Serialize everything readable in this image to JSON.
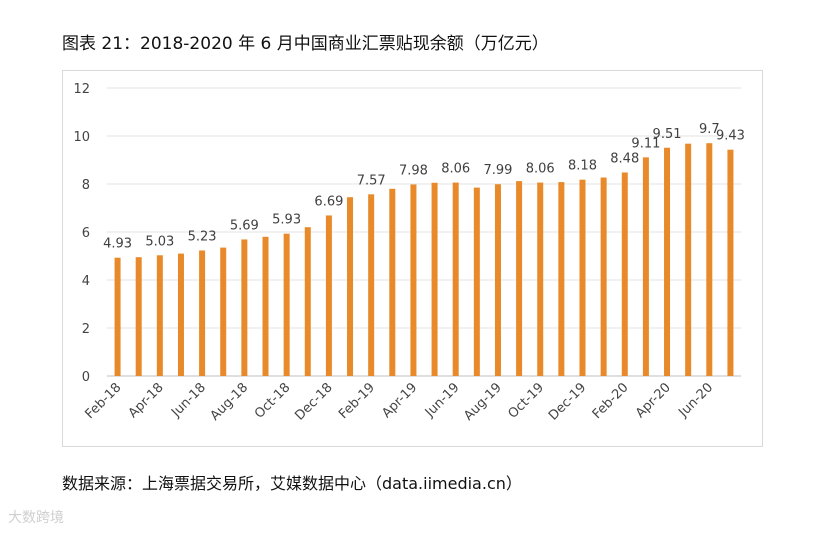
{
  "title": "图表 21：2018-2020 年 6 月中国商业汇票贴现余额（万亿元）",
  "source": "数据来源：上海票据交易所，艾媒数据中心（data.iimedia.cn）",
  "watermark": "大数跨境",
  "chart_data": {
    "type": "bar",
    "bar_color": "#E8892A",
    "ylim": [
      0,
      12
    ],
    "yticks": [
      0,
      2,
      4,
      6,
      8,
      10,
      12
    ],
    "grid": true,
    "categories": [
      "Feb-18",
      "Mar-18",
      "Apr-18",
      "May-18",
      "Jun-18",
      "Jul-18",
      "Aug-18",
      "Sep-18",
      "Oct-18",
      "Nov-18",
      "Dec-18",
      "Jan-19",
      "Feb-19",
      "Mar-19",
      "Apr-19",
      "May-19",
      "Jun-19",
      "Jul-19",
      "Aug-19",
      "Sep-19",
      "Oct-19",
      "Nov-19",
      "Dec-19",
      "Jan-20",
      "Feb-20",
      "Mar-20",
      "Apr-20",
      "May-20",
      "Jun-20",
      "Jul-20"
    ],
    "x_tick_labels": [
      "Feb-18",
      "Apr-18",
      "Jun-18",
      "Aug-18",
      "Oct-18",
      "Dec-18",
      "Feb-19",
      "Apr-19",
      "Jun-19",
      "Aug-19",
      "Oct-19",
      "Dec-19",
      "Feb-20",
      "Apr-20",
      "Jun-20"
    ],
    "values": [
      4.93,
      4.95,
      5.03,
      5.1,
      5.23,
      5.35,
      5.69,
      5.8,
      5.93,
      6.2,
      6.69,
      7.45,
      7.57,
      7.8,
      7.98,
      8.05,
      8.06,
      7.85,
      7.99,
      8.12,
      8.06,
      8.08,
      8.18,
      8.27,
      8.48,
      9.11,
      9.51,
      9.68,
      9.7,
      9.43
    ],
    "data_labels": [
      {
        "index": 0,
        "text": "4.93"
      },
      {
        "index": 2,
        "text": "5.03"
      },
      {
        "index": 4,
        "text": "5.23"
      },
      {
        "index": 6,
        "text": "5.69"
      },
      {
        "index": 8,
        "text": "5.93"
      },
      {
        "index": 10,
        "text": "6.69"
      },
      {
        "index": 12,
        "text": "7.57"
      },
      {
        "index": 14,
        "text": "7.98"
      },
      {
        "index": 16,
        "text": "8.06"
      },
      {
        "index": 18,
        "text": "7.99"
      },
      {
        "index": 20,
        "text": "8.06"
      },
      {
        "index": 22,
        "text": "8.18"
      },
      {
        "index": 24,
        "text": "8.48"
      },
      {
        "index": 25,
        "text": "9.11"
      },
      {
        "index": 26,
        "text": "9.51"
      },
      {
        "index": 28,
        "text": "9.7"
      },
      {
        "index": 29,
        "text": "9.43"
      }
    ]
  }
}
